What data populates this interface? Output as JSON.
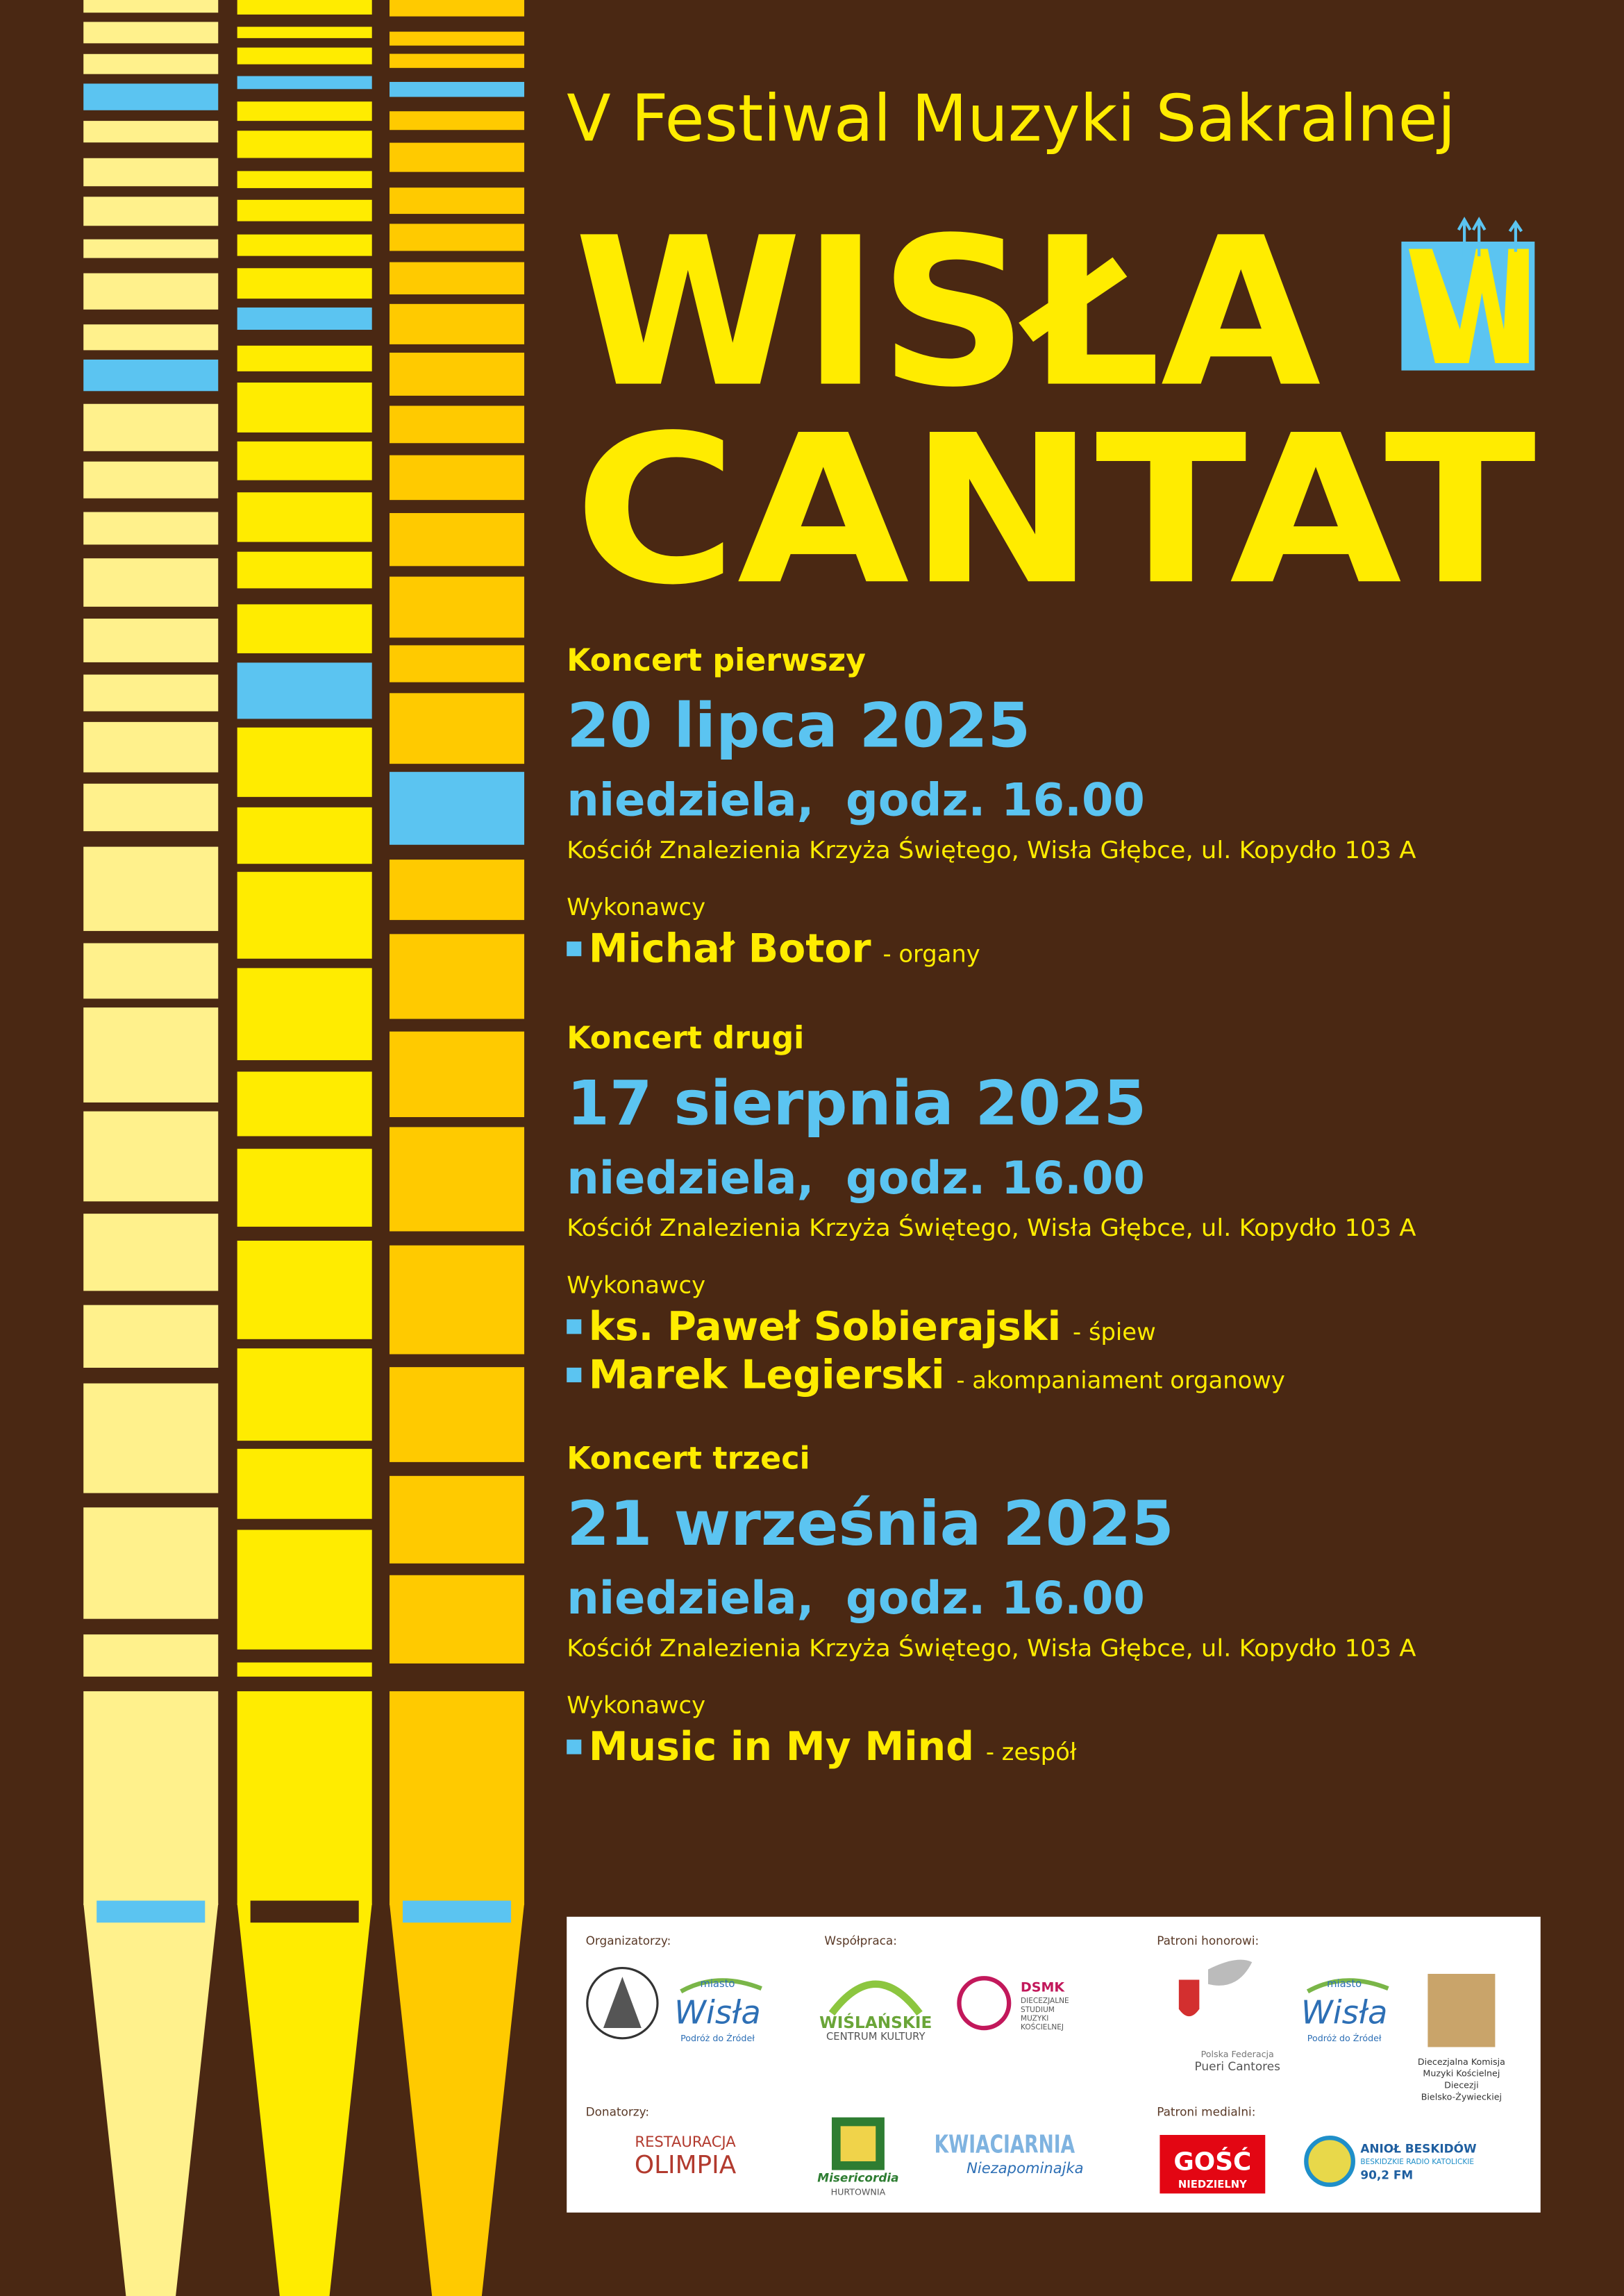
{
  "header": {
    "subtitle": "V Festiwal Muzyki Sakralnej",
    "title_line1": "WISŁA",
    "title_line2": "CANTAT"
  },
  "concerts": [
    {
      "label": "Koncert pierwszy",
      "date": "20 lipca 2025",
      "day_time": "niedziela,  godz. 16.00",
      "venue": "Kościół Znalezienia Krzyża Świętego, Wisła Głębce, ul. Kopydło 103 A",
      "performers_label": "Wykonawcy",
      "performers": [
        {
          "name": "Michał Botor",
          "role": "- organy"
        }
      ]
    },
    {
      "label": "Koncert drugi",
      "date": "17 sierpnia 2025",
      "day_time": "niedziela,  godz. 16.00",
      "venue": "Kościół Znalezienia Krzyża Świętego, Wisła Głębce, ul. Kopydło 103 A",
      "performers_label": "Wykonawcy",
      "performers": [
        {
          "name": "ks. Paweł Sobierajski",
          "role": "- śpiew"
        },
        {
          "name": "Marek Legierski",
          "role": "- akompaniament organowy"
        }
      ]
    },
    {
      "label": "Koncert trzeci",
      "date": "21 września 2025",
      "day_time": "niedziela,  godz. 16.00",
      "venue": "Kościół Znalezienia Krzyża Świętego, Wisła Głębce, ul. Kopydło 103 A",
      "performers_label": "Wykonawcy",
      "performers": [
        {
          "name": "Music in My Mind",
          "role": "- zespół"
        }
      ]
    }
  ],
  "sponsors": {
    "organizers": {
      "label": "Organizatorzy:",
      "wisla_logo": [
        "miasto",
        "Wisła",
        "Podróż do Źródeł"
      ]
    },
    "cooperation": {
      "label": "Współpraca:",
      "wck_logo": [
        "WIŚLAŃSKIE",
        "CENTRUM KULTURY"
      ],
      "dsmk_logo": [
        "DSMK",
        "DIECEZJALNE",
        "STUDIUM",
        "MUZYKI",
        "KOŚCIELNEJ"
      ]
    },
    "honorary": {
      "label": "Patroni honorowi:",
      "pueri_logo": [
        "Polska Federacja",
        "Pueri Cantores"
      ],
      "wisla_logo": [
        "miasto",
        "Wisła",
        "Podróż do Źródeł"
      ],
      "komisja_logo": [
        "Diecezjalna Komisja",
        "Muzyki Kościelnej",
        "Diecezji",
        "Bielsko-Żywieckiej"
      ]
    },
    "donors": {
      "label": "Donatorzy:",
      "olimpia_logo": [
        "RESTAURACJA",
        "OLIMPIA"
      ],
      "misericordia_logo": [
        "Misericordia",
        "HURTOWNIA"
      ],
      "kwiaciarnia_logo": [
        "KWIACIARNIA",
        "Niezapominajka"
      ]
    },
    "media": {
      "label": "Patroni medialni:",
      "gosc_logo": [
        "GOŚĆ",
        "NIEDZIELNY"
      ],
      "aniol_logo": [
        "ANIOŁ BESKIDÓW",
        "BESKIDZKIE RADIO KATOLICKIE",
        "90,2 FM"
      ]
    }
  }
}
